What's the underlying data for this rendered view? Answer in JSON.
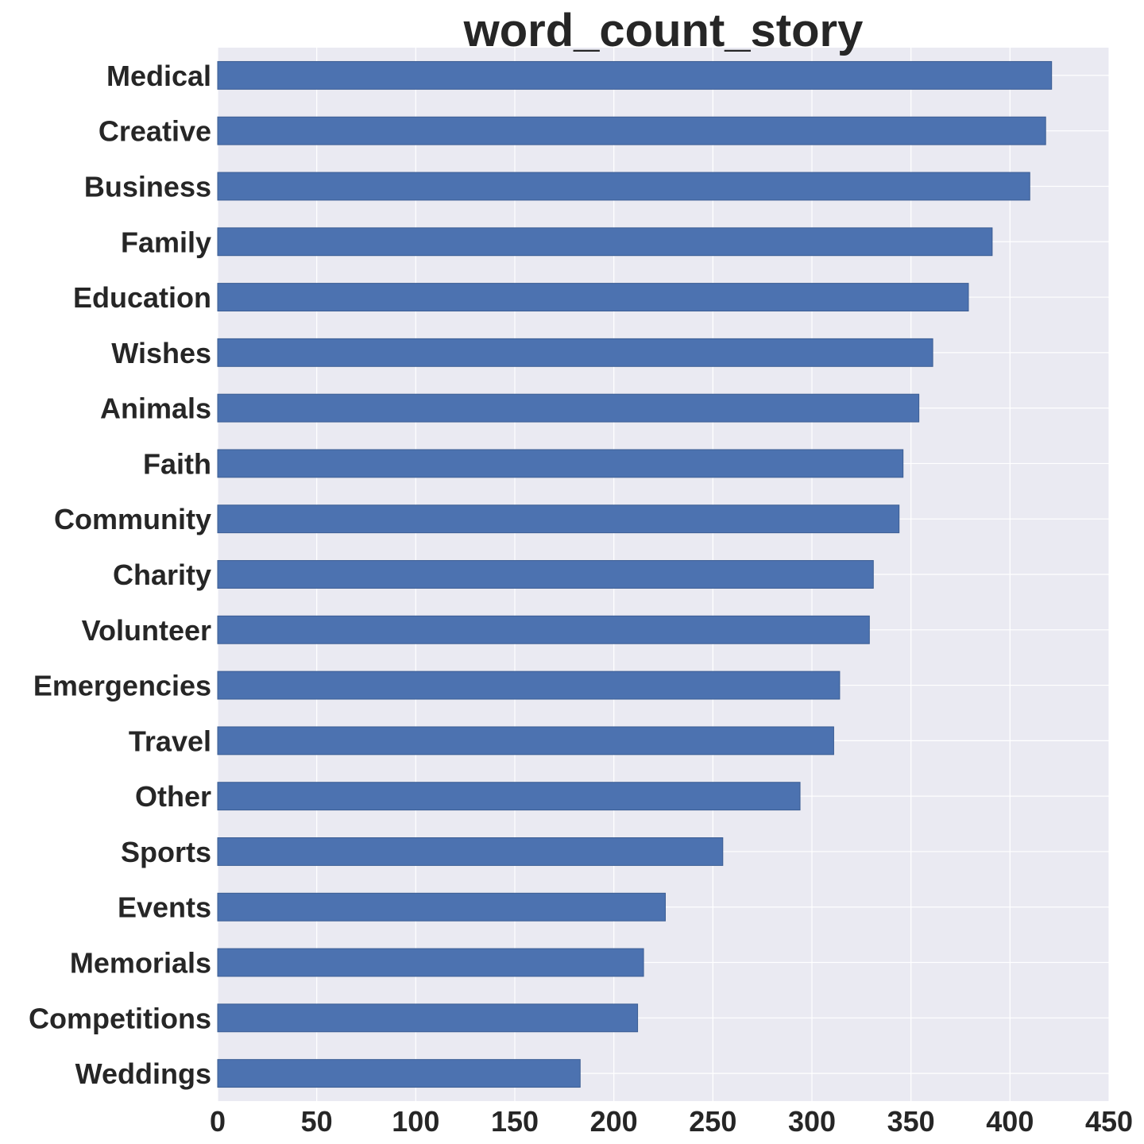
{
  "chart_data": {
    "type": "bar",
    "orientation": "horizontal",
    "title": "word_count_story",
    "xlabel": "",
    "ylabel": "",
    "categories": [
      "Medical",
      "Creative",
      "Business",
      "Family",
      "Education",
      "Wishes",
      "Animals",
      "Faith",
      "Community",
      "Charity",
      "Volunteer",
      "Emergencies",
      "Travel",
      "Other",
      "Sports",
      "Events",
      "Memorials",
      "Competitions",
      "Weddings"
    ],
    "values": [
      421,
      418,
      410,
      391,
      379,
      361,
      354,
      346,
      344,
      331,
      329,
      314,
      311,
      294,
      255,
      226,
      215,
      212,
      183
    ],
    "xlim": [
      0,
      450
    ],
    "xticks": [
      "0",
      "50",
      "100",
      "150",
      "200",
      "250",
      "300",
      "350",
      "400",
      "450"
    ],
    "grid": true,
    "legend": "none",
    "colors": {
      "bar": "#4c72b0",
      "bar_edge": "#3b5d93",
      "background": "#eaeaf2",
      "grid": "#ffffff",
      "text": "#262626"
    }
  }
}
